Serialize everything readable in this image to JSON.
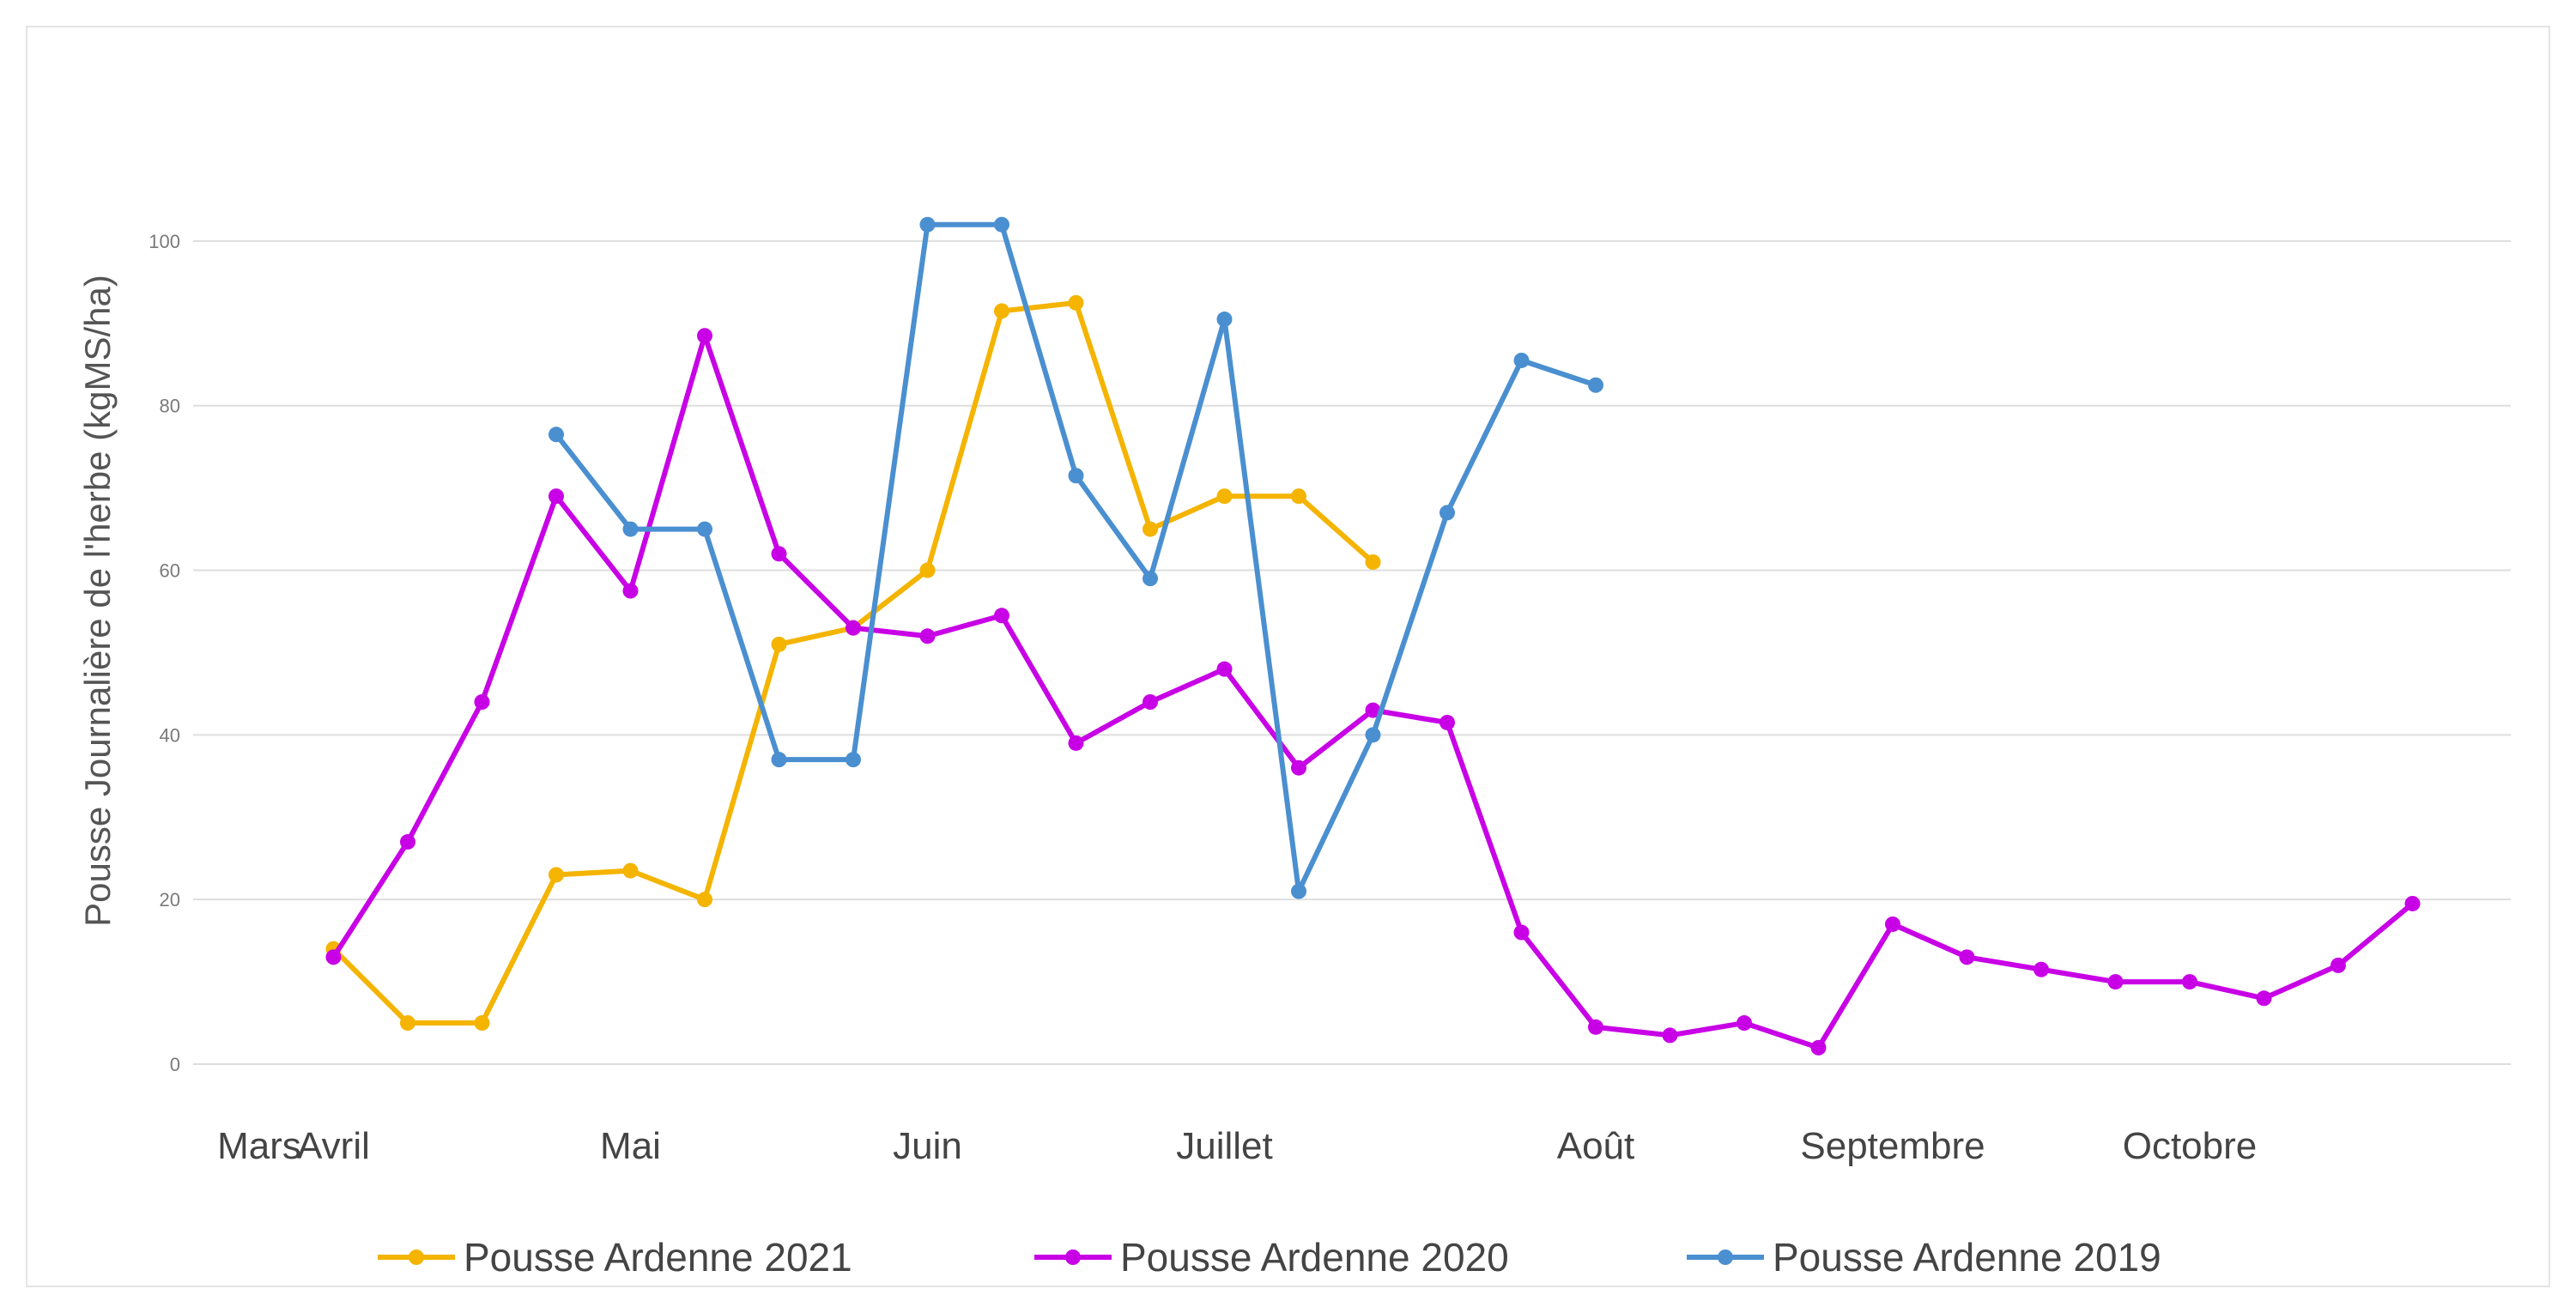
{
  "chart_data": {
    "type": "line",
    "title": "",
    "xlabel": "",
    "ylabel": "Pousse Journalière de l'herbe (kgMS/ha)",
    "ylim": [
      0,
      100
    ],
    "yticks": [
      0,
      20,
      40,
      60,
      80,
      100
    ],
    "grid": true,
    "legend": "bottom",
    "month_labels": [
      {
        "label": "Mars",
        "pos": 0
      },
      {
        "label": "Avril",
        "pos": 1
      },
      {
        "label": "Mai",
        "pos": 5
      },
      {
        "label": "Juin",
        "pos": 9
      },
      {
        "label": "Juillet",
        "pos": 13
      },
      {
        "label": "Août",
        "pos": 18
      },
      {
        "label": "Septembre",
        "pos": 22
      },
      {
        "label": "Octobre",
        "pos": 26
      }
    ],
    "x": [
      1,
      2,
      3,
      4,
      5,
      6,
      7,
      8,
      9,
      10,
      11,
      12,
      13,
      14,
      15,
      16,
      17,
      18,
      19,
      20,
      21,
      22,
      23,
      24,
      25,
      26,
      27,
      28,
      29
    ],
    "series": [
      {
        "name": "Pousse Ardenne 2021",
        "color": "#f4b400",
        "values": [
          14,
          5,
          5,
          23,
          23.5,
          20,
          51,
          53,
          60,
          91.5,
          92.5,
          65,
          69,
          69,
          61,
          null,
          null,
          null,
          null,
          null,
          null,
          null,
          null,
          null,
          null,
          null,
          null,
          null,
          null
        ]
      },
      {
        "name": "Pousse Ardenne 2020",
        "color": "#c800e6",
        "values": [
          13,
          27,
          44,
          69,
          57.5,
          88.5,
          62,
          53,
          52,
          54.5,
          39,
          44,
          48,
          36,
          43,
          41.5,
          16,
          4.5,
          3.5,
          5,
          2,
          17,
          13,
          11.5,
          10,
          10,
          8,
          12,
          19.5
        ]
      },
      {
        "name": "Pousse Ardenne 2019",
        "color": "#4a8fd0",
        "values": [
          null,
          null,
          null,
          76.5,
          65,
          65,
          37,
          37,
          102,
          102,
          71.5,
          59,
          90.5,
          21,
          40,
          67,
          85.5,
          82.5,
          null,
          null,
          null,
          null,
          null,
          null,
          null,
          null,
          null,
          null,
          null
        ]
      }
    ]
  }
}
